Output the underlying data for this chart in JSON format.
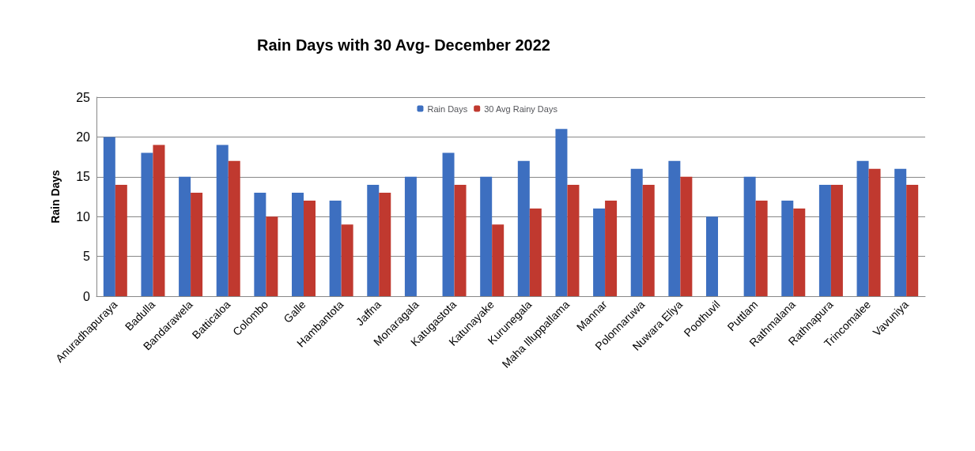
{
  "chart_data": {
    "type": "bar",
    "title": "Rain Days with 30 Avg- December 2022",
    "ylabel": "Rain Days",
    "categories": [
      "Anuradhapuraya",
      "Badulla",
      "Bandarawela",
      "Batticaloa",
      "Colombo",
      "Galle",
      "Hambantota",
      "Jaffna",
      "Monaragala",
      "Katugastota",
      "Katunayake",
      "Kurunegala",
      "Maha Illuppallama",
      "Mannar",
      "Polonnaruwa",
      "Nuwara Eliya",
      "Poothuvil",
      "Puttlam",
      "Rathmalana",
      "Rathnapura",
      "Trincomalee",
      "Vavuniya"
    ],
    "series": [
      {
        "name": "Rain Days",
        "color": "#3d6fc0",
        "values": [
          20,
          18,
          15,
          19,
          13,
          13,
          12,
          14,
          15,
          18,
          15,
          17,
          21,
          11,
          16,
          17,
          10,
          15,
          12,
          14,
          17,
          16
        ]
      },
      {
        "name": "30 Avg Rainy Days",
        "color": "#c0392f",
        "values": [
          14,
          19,
          13,
          17,
          10,
          12,
          9,
          13,
          null,
          14,
          9,
          11,
          14,
          12,
          14,
          15,
          null,
          12,
          11,
          14,
          16,
          14
        ]
      }
    ],
    "ylim": [
      0,
      25
    ],
    "yticks": [
      0,
      5,
      10,
      15,
      20,
      25
    ],
    "grid": "y",
    "legend": "top"
  }
}
